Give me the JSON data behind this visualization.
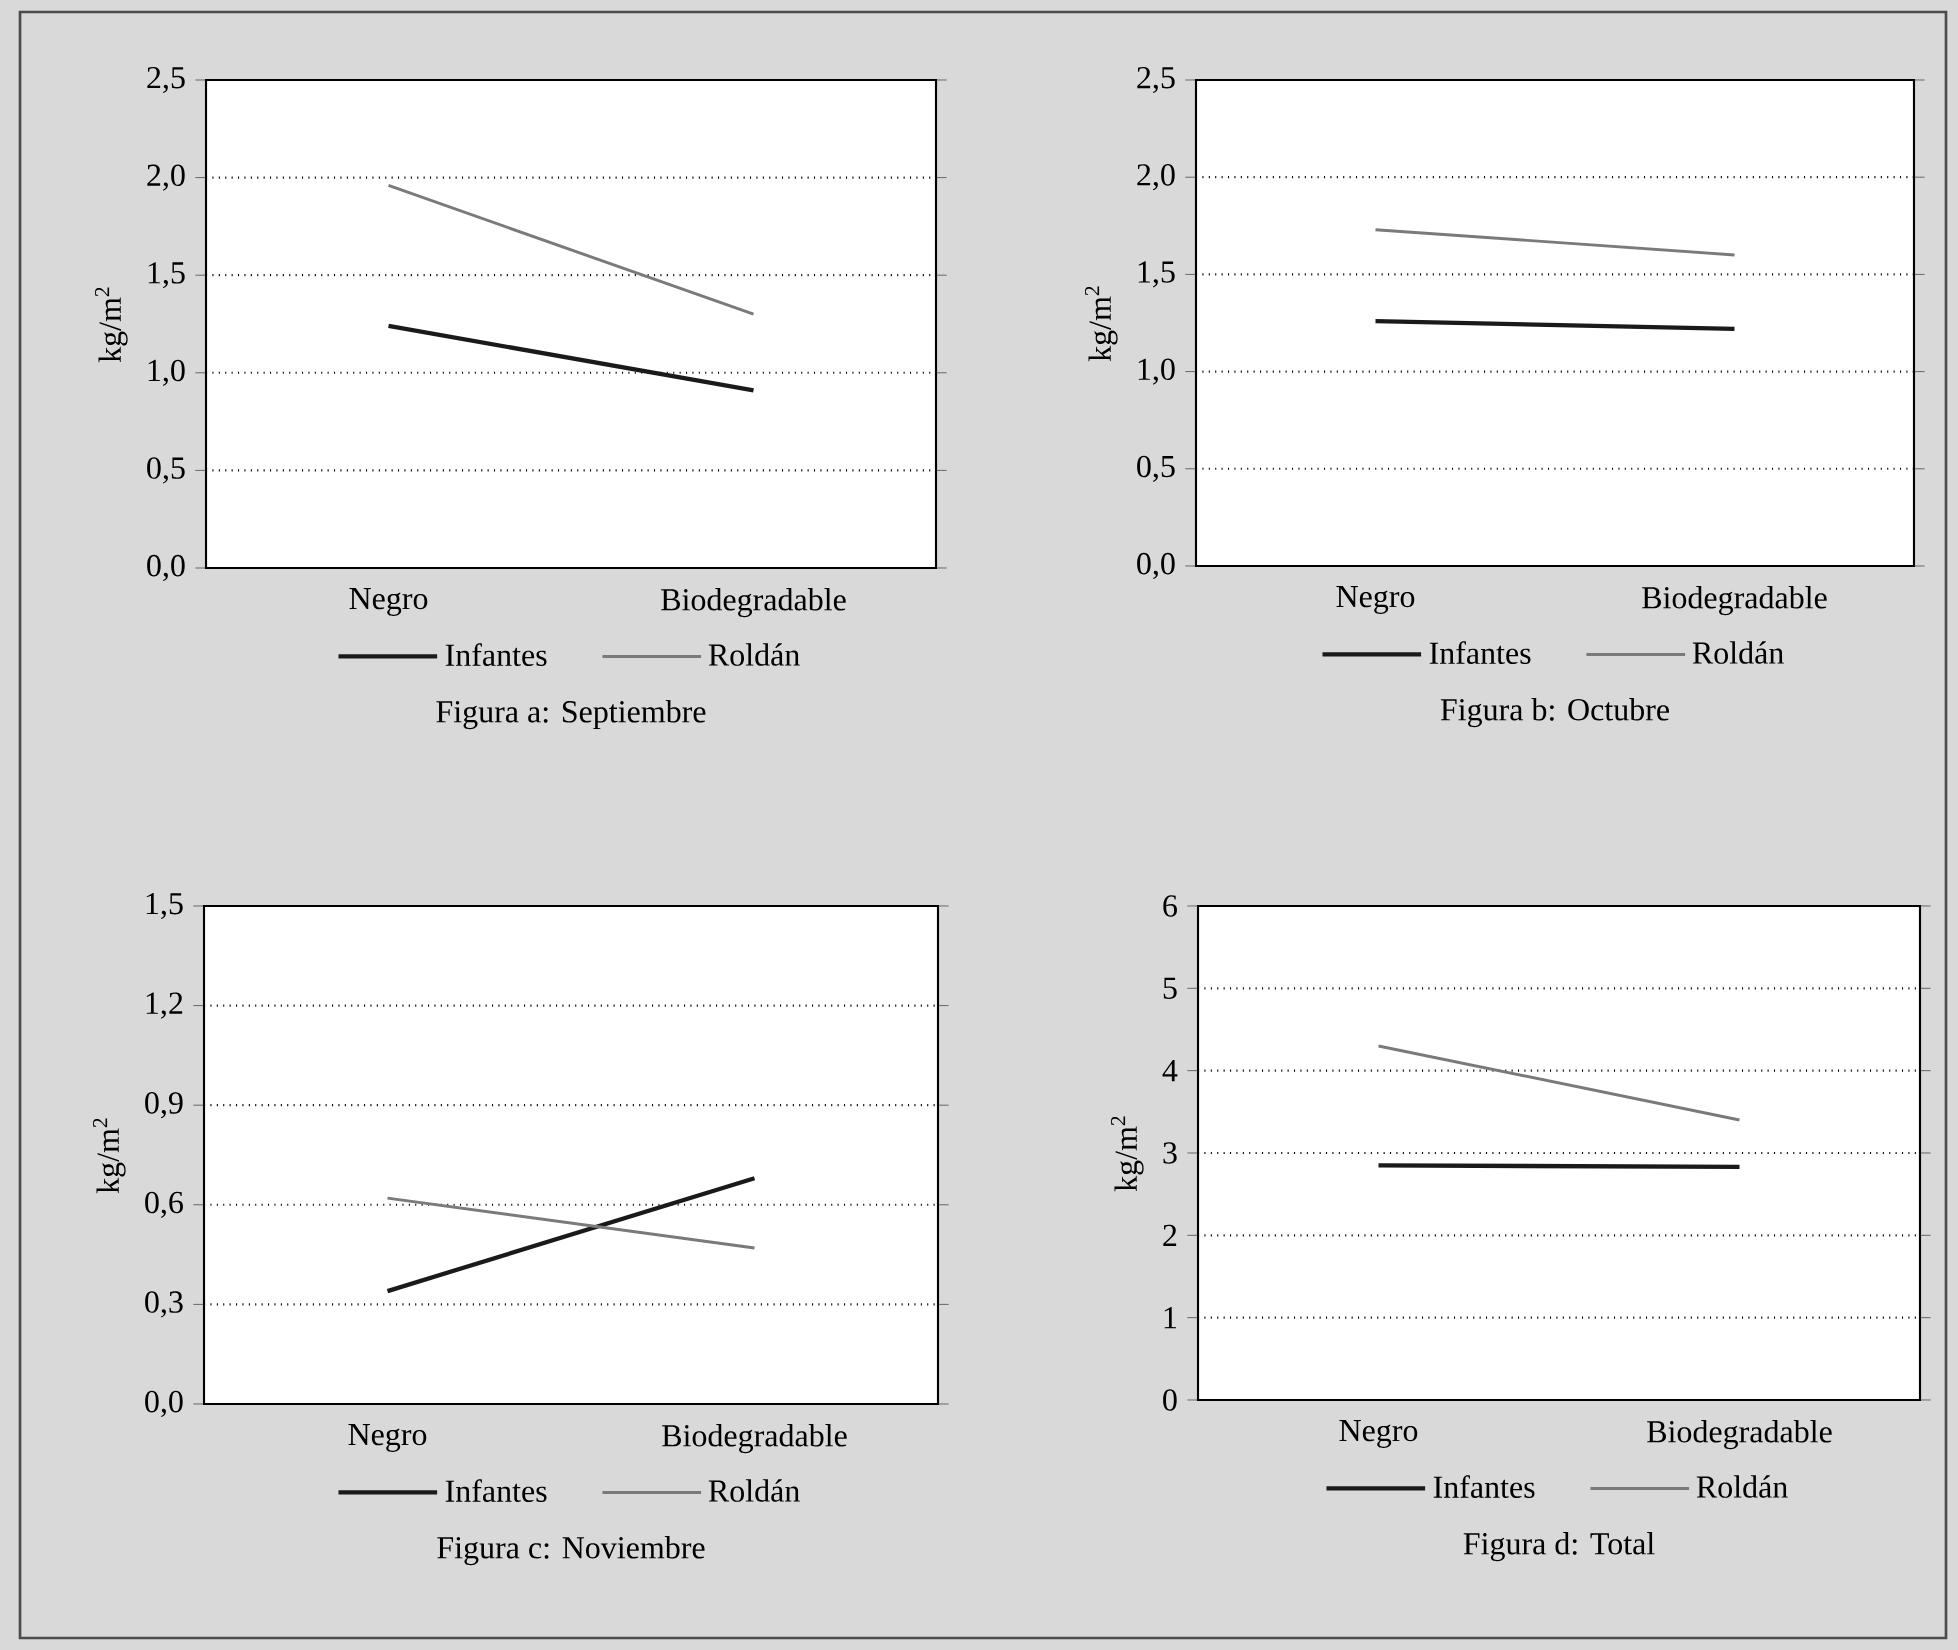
{
  "chart_data": [
    {
      "type": "line",
      "title": "Figura a: Septiembre",
      "ylabel": "kg/m$^{2}$",
      "categories": [
        "Negro",
        "Biodegradable"
      ],
      "series": [
        {
          "name": "Infantes",
          "color": "#1a1a1a",
          "values": [
            1.24,
            0.91
          ]
        },
        {
          "name": "Roldán",
          "color": "#7a7a7a",
          "values": [
            1.96,
            1.3
          ]
        }
      ],
      "ylim": [
        0,
        2.5
      ],
      "yticks": [
        {
          "value": 0,
          "label": "0,0"
        },
        {
          "value": 0.5,
          "label": "0,5"
        },
        {
          "value": 1,
          "label": "1,0"
        },
        {
          "value": 1.5,
          "label": "1,5"
        },
        {
          "value": 2,
          "label": "2,0"
        },
        {
          "value": 2.5,
          "label": "2,5"
        }
      ],
      "grid": "y",
      "legend": "bottom",
      "line_style": "solid"
    },
    {
      "type": "line",
      "title": "Figura b: Octubre",
      "ylabel": "kg/m$^{2}$",
      "categories": [
        "Negro",
        "Biodegradable"
      ],
      "series": [
        {
          "name": "Infantes",
          "color": "#1a1a1a",
          "values": [
            1.26,
            1.22
          ]
        },
        {
          "name": "Roldán",
          "color": "#7a7a7a",
          "values": [
            1.73,
            1.6
          ]
        }
      ],
      "ylim": [
        0,
        2.5
      ],
      "yticks": [
        {
          "value": 0,
          "label": "0,0"
        },
        {
          "value": 0.5,
          "label": "0,5"
        },
        {
          "value": 1,
          "label": "1,0"
        },
        {
          "value": 1.5,
          "label": "1,5"
        },
        {
          "value": 2,
          "label": "2,0"
        },
        {
          "value": 2.5,
          "label": "2,5"
        }
      ],
      "grid": "y",
      "legend": "bottom",
      "line_style": "solid"
    },
    {
      "type": "line",
      "title": "Figura c: Noviembre",
      "ylabel": "kg/m$^{2}$",
      "categories": [
        "Negro",
        "Biodegradable"
      ],
      "series": [
        {
          "name": "Infantes",
          "color": "#1a1a1a",
          "values": [
            0.34,
            0.68
          ]
        },
        {
          "name": "Roldán",
          "color": "#7a7a7a",
          "values": [
            0.62,
            0.47
          ]
        }
      ],
      "ylim": [
        0,
        1.5
      ],
      "yticks": [
        {
          "value": 0,
          "label": "0,0"
        },
        {
          "value": 0.3,
          "label": "0,3"
        },
        {
          "value": 0.6,
          "label": "0,6"
        },
        {
          "value": 0.9,
          "label": "0,9"
        },
        {
          "value": 1.2,
          "label": "1,2"
        },
        {
          "value": 1.5,
          "label": "1,5"
        }
      ],
      "grid": "y",
      "legend": "bottom",
      "line_style": "solid"
    },
    {
      "type": "line",
      "title": "Figura d: Total",
      "ylabel": "kg/m$^{2}$",
      "categories": [
        "Negro",
        "Biodegradable"
      ],
      "series": [
        {
          "name": "Infantes",
          "color": "#1a1a1a",
          "values": [
            2.85,
            2.83
          ]
        },
        {
          "name": "Roldán",
          "color": "#7a7a7a",
          "values": [
            4.3,
            3.4
          ]
        }
      ],
      "ylim": [
        0,
        6
      ],
      "yticks": [
        0,
        1,
        2,
        3,
        4,
        5,
        6
      ],
      "grid": "y",
      "legend": "bottom",
      "line_style": "solid"
    }
  ]
}
